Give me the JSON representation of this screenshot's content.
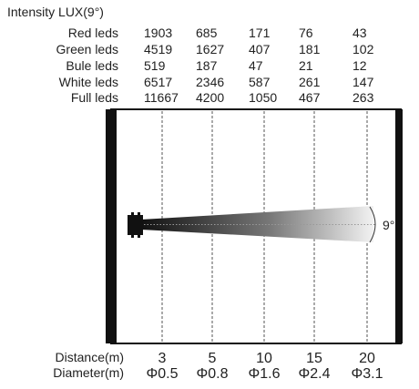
{
  "title": "Intensity LUX(9°)",
  "rows": [
    {
      "label": "Red leds",
      "values": [
        "1903",
        "685",
        "171",
        "76",
        "43"
      ]
    },
    {
      "label": "Green leds",
      "values": [
        "4519",
        "1627",
        "407",
        "181",
        "102"
      ]
    },
    {
      "label": "Bule leds",
      "values": [
        "519",
        "187",
        "47",
        "21",
        "12"
      ]
    },
    {
      "label": "White leds",
      "values": [
        "6517",
        "2346",
        "587",
        "261",
        "147"
      ]
    },
    {
      "label": "Full leds",
      "values": [
        "11667",
        "4200",
        "1050",
        "467",
        "263"
      ]
    }
  ],
  "beam_angle_label": "9°",
  "distance_label": "Distance(m)",
  "diameter_label": "Diameter(m)",
  "distances": [
    "3",
    "5",
    "10",
    "15",
    "20"
  ],
  "diameters": [
    "Φ0.5",
    "Φ0.8",
    "Φ1.6",
    "Φ2.4",
    "Φ3.1"
  ]
}
